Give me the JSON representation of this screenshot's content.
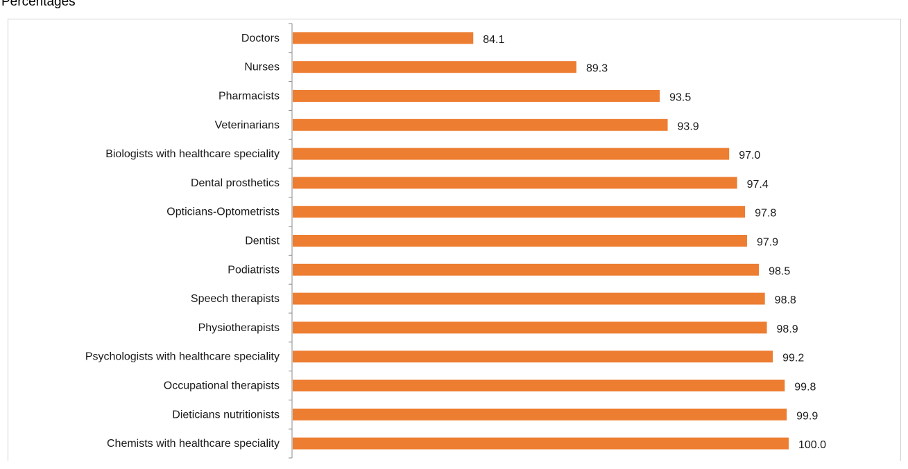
{
  "unit_label": "Percentages",
  "colors": {
    "bar": "#ED7D31",
    "axis": "#888888"
  },
  "chart_data": {
    "type": "bar",
    "orientation": "horizontal",
    "categories": [
      "Doctors",
      "Nurses",
      "Pharmacists",
      "Veterinarians",
      "Biologists with healthcare speciality",
      "Dental prosthetics",
      "Opticians-Optometrists",
      "Dentist",
      "Podiatrists",
      "Speech therapists",
      "Physiotherapists",
      "Psychologists with healthcare speciality",
      "Occupational therapists",
      "Dieticians nutritionists",
      "Chemists with healthcare speciality"
    ],
    "values": [
      84.1,
      89.3,
      93.5,
      93.9,
      97.0,
      97.4,
      97.8,
      97.9,
      98.5,
      98.8,
      98.9,
      99.2,
      99.8,
      99.9,
      100.0
    ],
    "value_labels": [
      "84.1",
      "89.3",
      "93.5",
      "93.9",
      "97.0",
      "97.4",
      "97.8",
      "97.9",
      "98.5",
      "98.8",
      "98.9",
      "99.2",
      "99.8",
      "99.9",
      "100.0"
    ],
    "xlim": [
      75,
      100
    ],
    "grid": false,
    "legend": "none"
  }
}
